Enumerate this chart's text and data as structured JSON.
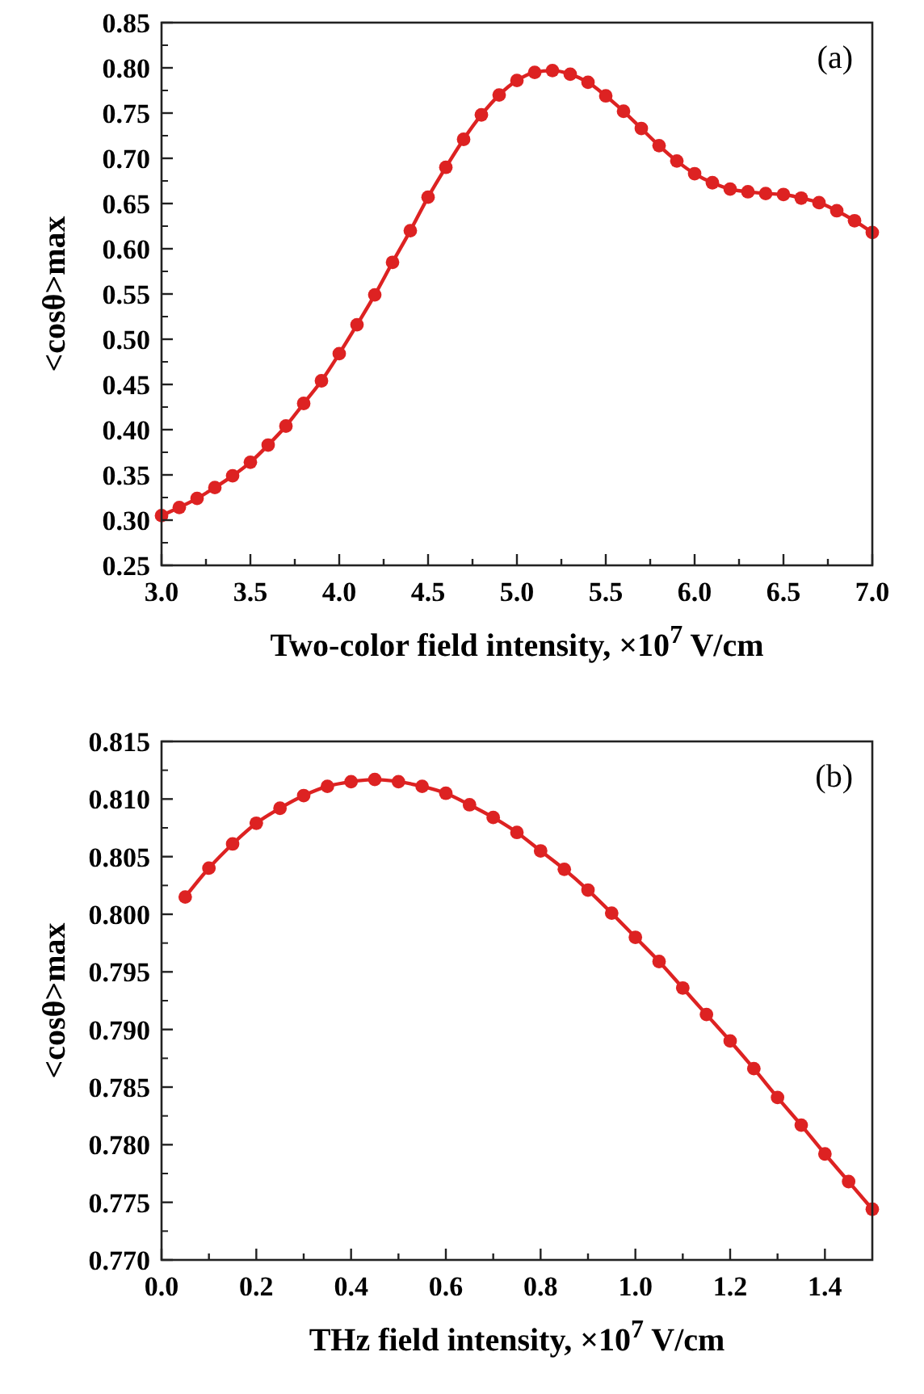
{
  "chart_data": [
    {
      "type": "line",
      "xlabel": "Two-color field intensity, ×10$^{7}$ V/cm",
      "ylabel": "<cosθ>max",
      "annotations": [
        "(a)"
      ],
      "marker": "circle",
      "line_style": "solid",
      "grid": false,
      "xlim": [
        3.0,
        7.0
      ],
      "ylim": [
        0.25,
        0.85
      ],
      "xticks": [
        {
          "value": 3,
          "label": "3.0"
        },
        {
          "value": 3.25,
          "label": null
        },
        {
          "value": 3.5,
          "label": "3.5"
        },
        {
          "value": 3.75,
          "label": null
        },
        {
          "value": 4,
          "label": "4.0"
        },
        {
          "value": 4.25,
          "label": null
        },
        {
          "value": 4.5,
          "label": "4.5"
        },
        {
          "value": 4.75,
          "label": null
        },
        {
          "value": 5,
          "label": "5.0"
        },
        {
          "value": 5.25,
          "label": null
        },
        {
          "value": 5.5,
          "label": "5.5"
        },
        {
          "value": 5.75,
          "label": null
        },
        {
          "value": 6,
          "label": "6.0"
        },
        {
          "value": 6.25,
          "label": null
        },
        {
          "value": 6.5,
          "label": "6.5"
        },
        {
          "value": 6.75,
          "label": null
        },
        {
          "value": 7,
          "label": "7.0"
        }
      ],
      "yticks": [
        {
          "value": 0.25,
          "label": "0.25"
        },
        {
          "value": 0.3,
          "label": "0.30"
        },
        {
          "value": 0.35,
          "label": "0.35"
        },
        {
          "value": 0.4,
          "label": "0.40"
        },
        {
          "value": 0.45,
          "label": "0.45"
        },
        {
          "value": 0.5,
          "label": "0.50"
        },
        {
          "value": 0.55,
          "label": "0.55"
        },
        {
          "value": 0.6,
          "label": "0.60"
        },
        {
          "value": 0.65,
          "label": "0.65"
        },
        {
          "value": 0.7,
          "label": "0.70"
        },
        {
          "value": 0.75,
          "label": "0.75"
        },
        {
          "value": 0.8,
          "label": "0.80"
        },
        {
          "value": 0.85,
          "label": "0.85"
        }
      ],
      "x": [
        3.0,
        3.1,
        3.2,
        3.3,
        3.4,
        3.5,
        3.6,
        3.7,
        3.8,
        3.9,
        4.0,
        4.1,
        4.2,
        4.3,
        4.4,
        4.5,
        4.6,
        4.7,
        4.8,
        4.9,
        5.0,
        5.1,
        5.2,
        5.3,
        5.4,
        5.5,
        5.6,
        5.7,
        5.8,
        5.9,
        6.0,
        6.1,
        6.2,
        6.3,
        6.4,
        6.5,
        6.6,
        6.7,
        6.8,
        6.9,
        7.0
      ],
      "series": [
        {
          "color": "#dd2222",
          "values": [
            0.305,
            0.314,
            0.324,
            0.336,
            0.349,
            0.364,
            0.383,
            0.404,
            0.429,
            0.454,
            0.484,
            0.516,
            0.549,
            0.585,
            0.62,
            0.657,
            0.69,
            0.721,
            0.748,
            0.77,
            0.786,
            0.795,
            0.797,
            0.793,
            0.784,
            0.769,
            0.752,
            0.733,
            0.714,
            0.697,
            0.683,
            0.673,
            0.666,
            0.663,
            0.661,
            0.66,
            0.656,
            0.651,
            0.642,
            0.631,
            0.618
          ]
        }
      ]
    },
    {
      "type": "line",
      "xlabel": "THz field intensity, ×10$^{7}$ V/cm",
      "ylabel": "<cosθ>max",
      "annotations": [
        "(b)"
      ],
      "marker": "circle",
      "line_style": "solid",
      "grid": false,
      "xlim": [
        0.0,
        1.5
      ],
      "ylim": [
        0.77,
        0.815
      ],
      "xticks": [
        {
          "value": 0,
          "label": "0.0"
        },
        {
          "value": 0.1,
          "label": null
        },
        {
          "value": 0.2,
          "label": "0.2"
        },
        {
          "value": 0.3,
          "label": null
        },
        {
          "value": 0.4,
          "label": "0.4"
        },
        {
          "value": 0.5,
          "label": null
        },
        {
          "value": 0.6,
          "label": "0.6"
        },
        {
          "value": 0.7,
          "label": null
        },
        {
          "value": 0.8,
          "label": "0.8"
        },
        {
          "value": 0.9,
          "label": null
        },
        {
          "value": 1.0,
          "label": "1.0"
        },
        {
          "value": 1.1,
          "label": null
        },
        {
          "value": 1.2,
          "label": "1.2"
        },
        {
          "value": 1.3,
          "label": null
        },
        {
          "value": 1.4,
          "label": "1.4"
        }
      ],
      "yticks": [
        {
          "value": 0.77,
          "label": "0.770"
        },
        {
          "value": 0.775,
          "label": "0.775"
        },
        {
          "value": 0.78,
          "label": "0.780"
        },
        {
          "value": 0.785,
          "label": "0.785"
        },
        {
          "value": 0.79,
          "label": "0.790"
        },
        {
          "value": 0.795,
          "label": "0.795"
        },
        {
          "value": 0.8,
          "label": "0.800"
        },
        {
          "value": 0.805,
          "label": "0.805"
        },
        {
          "value": 0.81,
          "label": "0.810"
        },
        {
          "value": 0.815,
          "label": "0.815"
        }
      ],
      "x": [
        0.05,
        0.1,
        0.15,
        0.2,
        0.25,
        0.3,
        0.35,
        0.4,
        0.45,
        0.5,
        0.55,
        0.6,
        0.65,
        0.7,
        0.75,
        0.8,
        0.85,
        0.9,
        0.95,
        1.0,
        1.05,
        1.1,
        1.15,
        1.2,
        1.25,
        1.3,
        1.35,
        1.4,
        1.45,
        1.5
      ],
      "series": [
        {
          "color": "#dd2222",
          "values": [
            0.8015,
            0.804,
            0.8061,
            0.8079,
            0.8092,
            0.8103,
            0.8111,
            0.8115,
            0.8117,
            0.8115,
            0.8111,
            0.8105,
            0.8095,
            0.8084,
            0.8071,
            0.8055,
            0.8039,
            0.8021,
            0.8001,
            0.798,
            0.7959,
            0.7936,
            0.7913,
            0.789,
            0.7866,
            0.7841,
            0.7817,
            0.7792,
            0.7768,
            0.7744
          ]
        }
      ]
    }
  ]
}
